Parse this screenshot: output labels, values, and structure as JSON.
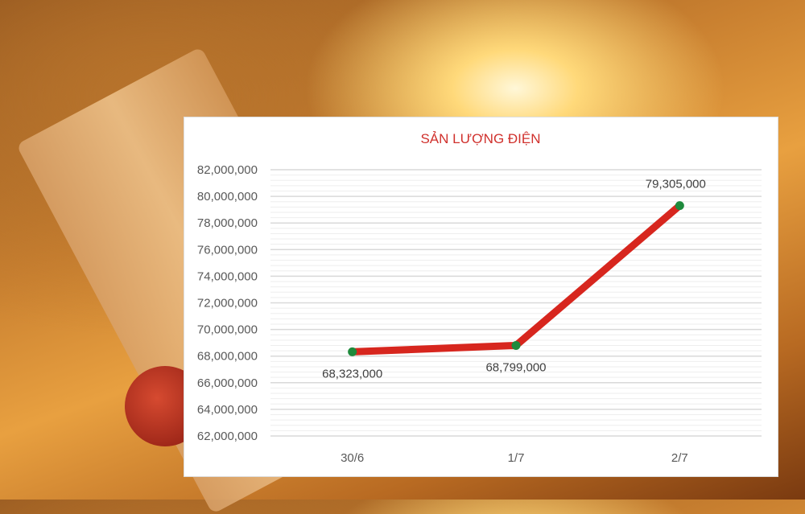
{
  "chart_data": {
    "type": "line",
    "title": "SẢN LƯỢNG ĐIỆN",
    "categories": [
      "30/6",
      "1/7",
      "2/7"
    ],
    "values": [
      68323000,
      68799000,
      79305000
    ],
    "data_labels": [
      "68,323,000",
      "68,799,000",
      "79,305,000"
    ],
    "ylim": [
      62000000,
      82000000
    ],
    "yticks": [
      "62,000,000",
      "64,000,000",
      "66,000,000",
      "68,000,000",
      "70,000,000",
      "72,000,000",
      "74,000,000",
      "76,000,000",
      "78,000,000",
      "80,000,000",
      "82,000,000"
    ],
    "grid": true,
    "legend": "none",
    "line_color": "#d7261e",
    "marker_color": "#1e8a3c"
  }
}
